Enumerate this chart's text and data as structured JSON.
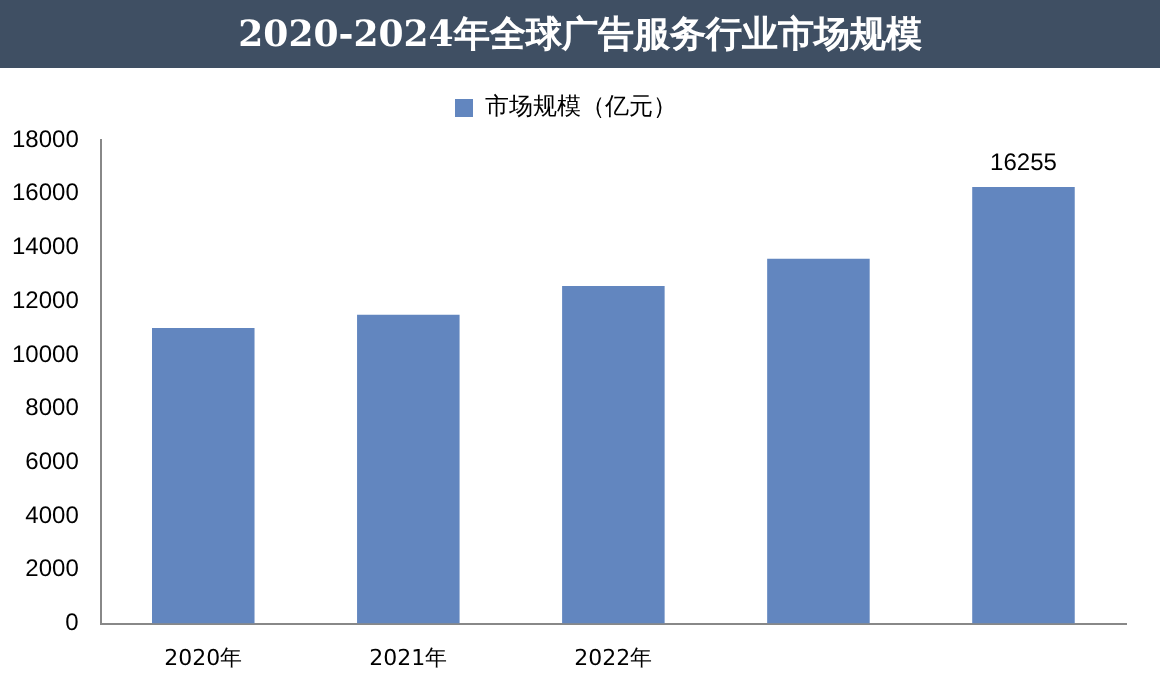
{
  "chart_data": {
    "type": "bar",
    "title": "2020-2024年全球广告服务行业市场规模",
    "categories": [
      "2020年",
      "2021年",
      "2022年",
      null,
      null
    ],
    "series": [
      {
        "name": "市场规模（亿元）",
        "color": "#6286bf",
        "values": [
          11000,
          11500,
          12570,
          13580,
          16255
        ],
        "value_labels": [
          null,
          null,
          null,
          null,
          "16255"
        ]
      }
    ],
    "ylim": [
      0,
      18000
    ],
    "yticks": [
      0,
      2000,
      4000,
      6000,
      8000,
      10000,
      12000,
      14000,
      16000,
      18000
    ],
    "grid": false,
    "legend": "top"
  }
}
